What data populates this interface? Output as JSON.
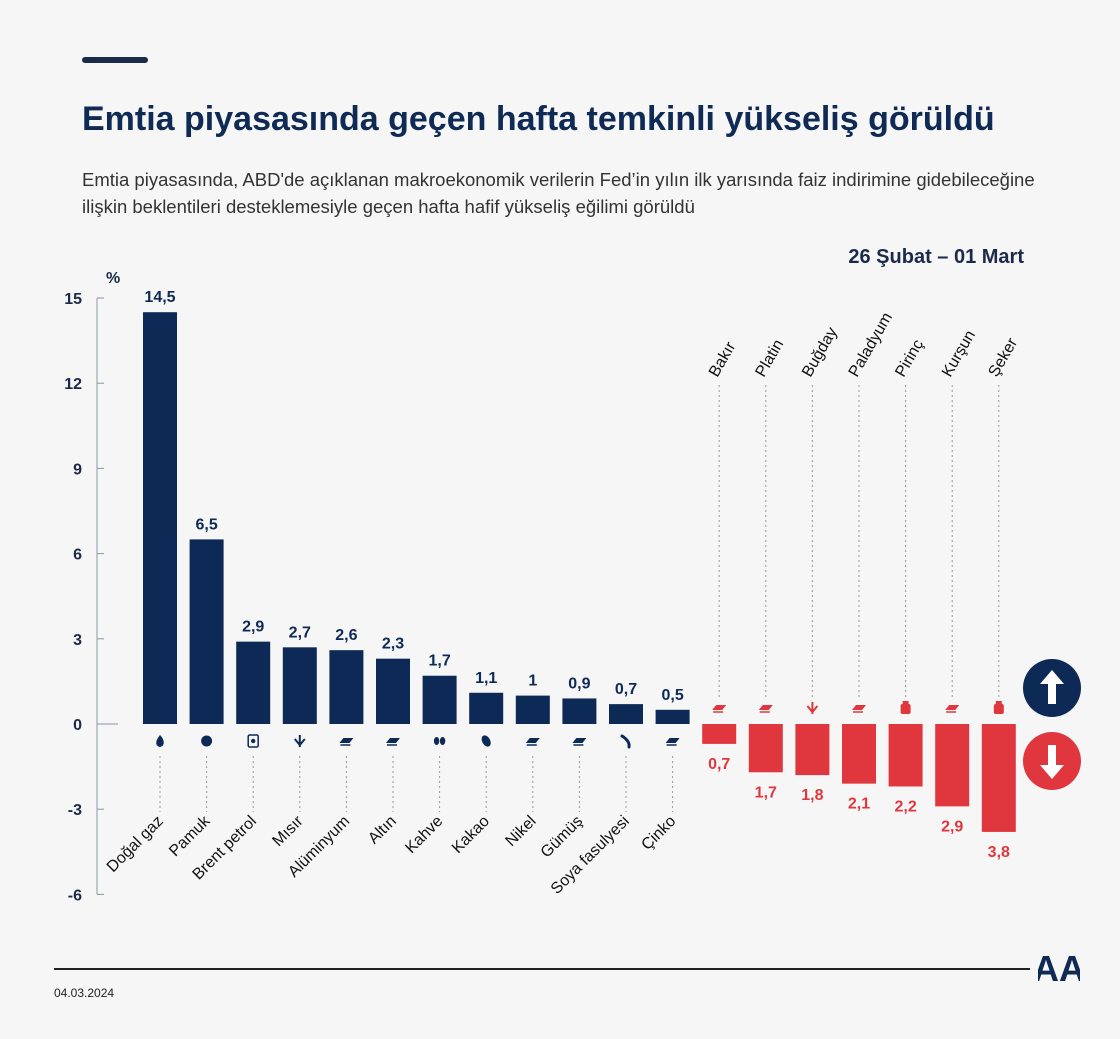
{
  "header": {
    "title": "Emtia piyasasında geçen hafta temkinli yükseliş görüldü",
    "subtitle": "Emtia piyasasında, ABD'de açıklanan makroekonomik verilerin Fed’in yılın ilk yarısında faiz indirimine gidebileceğine ilişkin beklentileri desteklemesiyle geçen hafta hafif yükseliş eğilimi görüldü",
    "date_range": "26 Şubat – 01 Mart"
  },
  "colors": {
    "positive": "#0d2a56",
    "negative": "#e0373f",
    "text_dark": "#1b2a49"
  },
  "chart_data": {
    "type": "bar",
    "ylabel": "%",
    "ylim": [
      -6,
      15
    ],
    "yticks": [
      15,
      12,
      9,
      6,
      3,
      0,
      -3,
      -6
    ],
    "categories": [
      "Doğal gaz",
      "Pamuk",
      "Brent petrol",
      "Mısır",
      "Alüminyum",
      "Altın",
      "Kahve",
      "Kakao",
      "Nikel",
      "Gümüş",
      "Soya fasulyesi",
      "Çinko",
      "Bakır",
      "Platin",
      "Buğday",
      "Paladyum",
      "Pirinç",
      "Kurşun",
      "Şeker"
    ],
    "values": [
      14.5,
      6.5,
      2.9,
      2.7,
      2.6,
      2.3,
      1.7,
      1.1,
      1,
      0.9,
      0.7,
      0.5,
      -0.7,
      -1.7,
      -1.8,
      -2.1,
      -2.2,
      -2.9,
      -3.8
    ],
    "value_labels": [
      "14,5",
      "6,5",
      "2,9",
      "2,7",
      "2,6",
      "2,3",
      "1,7",
      "1,1",
      "1",
      "0,9",
      "0,7",
      "0,5",
      "0,7",
      "1,7",
      "1,8",
      "2,1",
      "2,2",
      "2,9",
      "3,8"
    ],
    "icons": [
      "flame-icon",
      "cotton-icon",
      "oil-barrel-icon",
      "corn-icon",
      "metal-ingot-icon",
      "metal-ingot-icon",
      "coffee-bean-icon",
      "cocoa-icon",
      "metal-ingot-icon",
      "metal-ingot-icon",
      "soybean-icon",
      "metal-ingot-icon",
      "metal-ingot-icon",
      "metal-ingot-icon",
      "wheat-icon",
      "metal-ingot-icon",
      "rice-sack-icon",
      "metal-ingot-icon",
      "sugar-sack-icon"
    ]
  },
  "footer": {
    "date": "04.03.2024",
    "logo_text": "AA"
  }
}
